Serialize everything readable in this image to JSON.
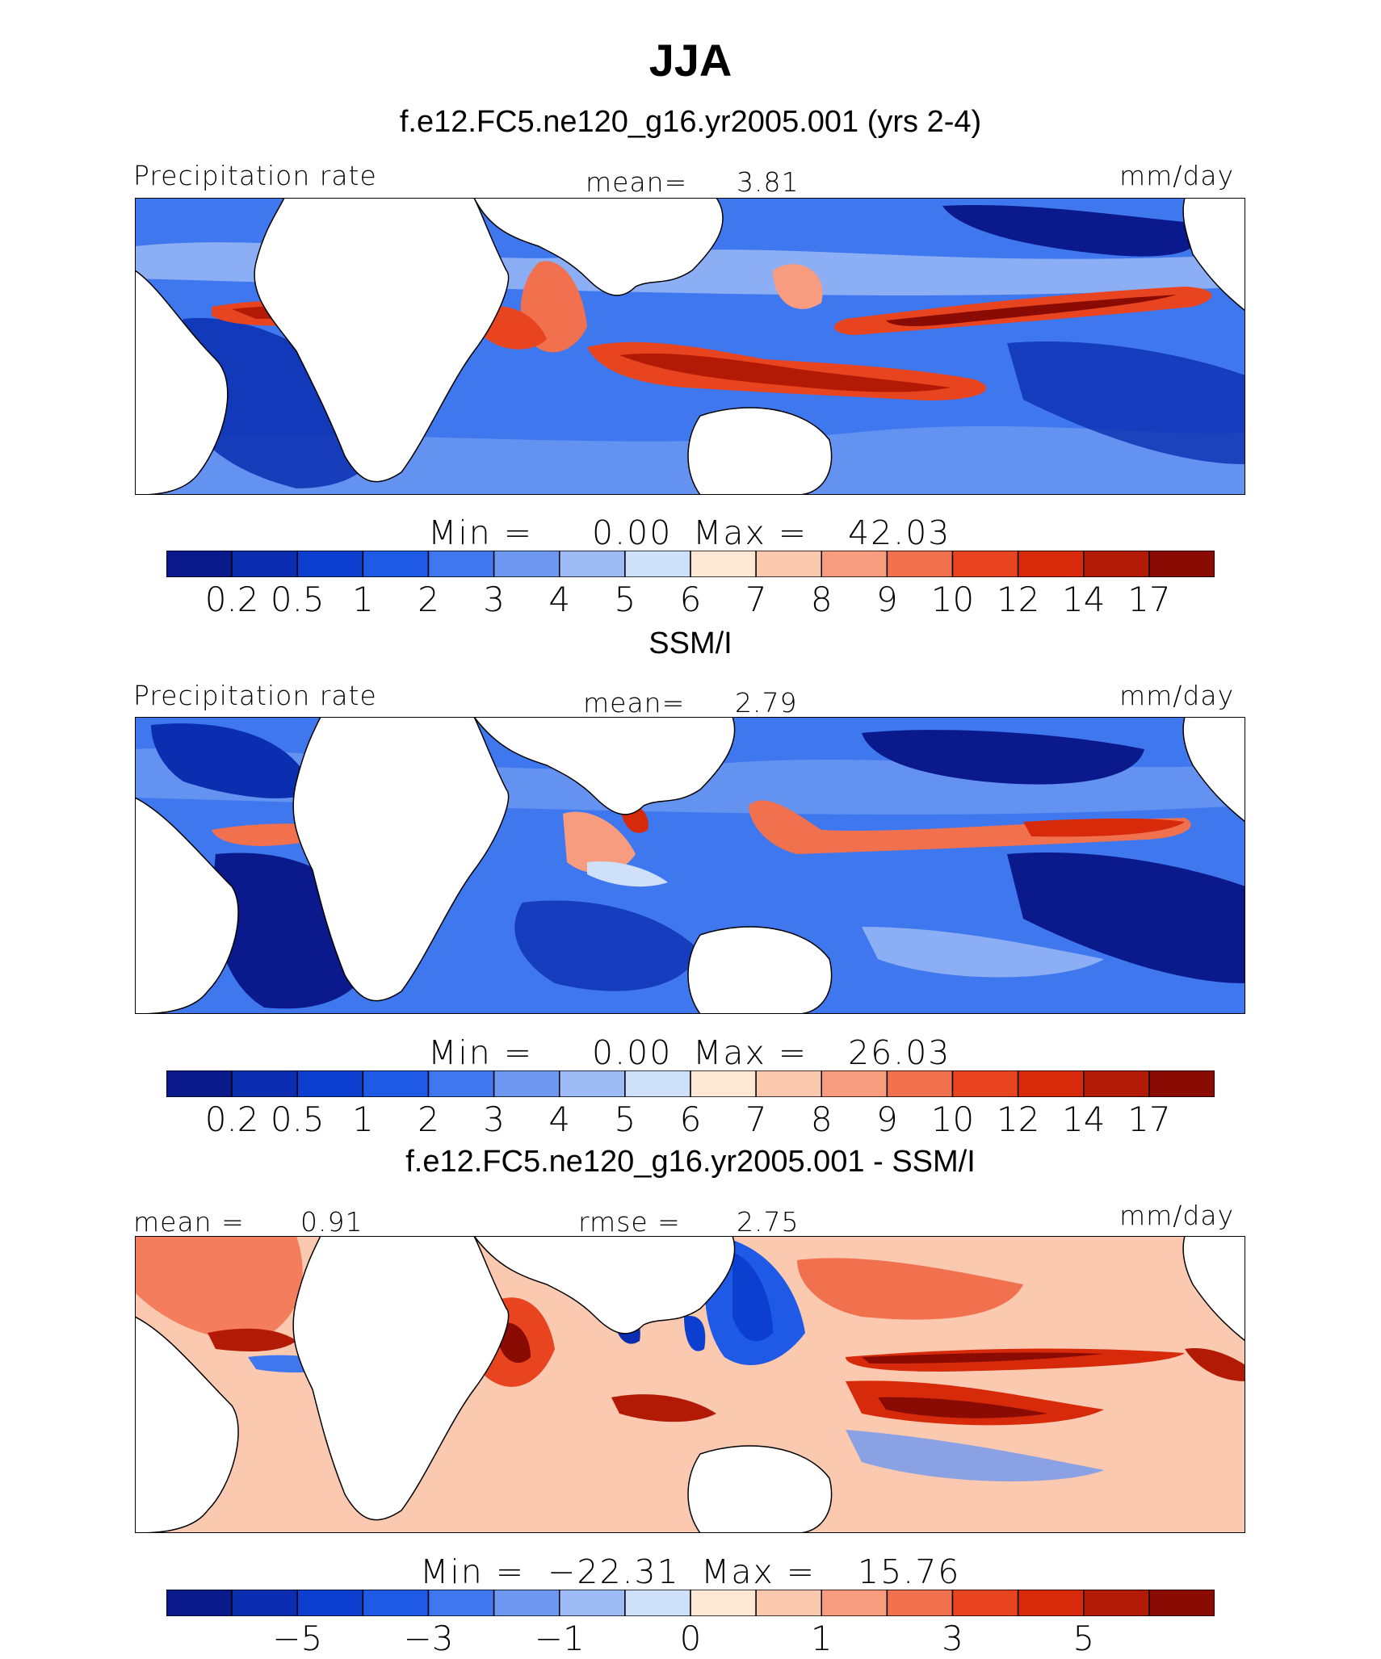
{
  "title": "JJA",
  "chart_data": [
    {
      "type": "heatmap",
      "title": "f.e12.FC5.ne120_g16.yr2005.001 (yrs 2-4)",
      "variable": "Precipitation rate",
      "units": "mm/day",
      "mean_label": "mean=",
      "mean": "3.81",
      "min_label": "Min  =",
      "min": "0.00",
      "max_label": "Max  =",
      "max": "42.03",
      "colorbar_levels": [
        "0.2",
        "0.5",
        "1",
        "2",
        "3",
        "4",
        "5",
        "6",
        "7",
        "8",
        "9",
        "10",
        "12",
        "14",
        "17"
      ]
    },
    {
      "type": "heatmap",
      "title": "SSM/I",
      "variable": "Precipitation rate",
      "units": "mm/day",
      "mean_label": "mean=",
      "mean": "2.79",
      "min_label": "Min  =",
      "min": "0.00",
      "max_label": "Max  =",
      "max": "26.03",
      "colorbar_levels": [
        "0.2",
        "0.5",
        "1",
        "2",
        "3",
        "4",
        "5",
        "6",
        "7",
        "8",
        "9",
        "10",
        "12",
        "14",
        "17"
      ]
    },
    {
      "type": "heatmap",
      "title": "f.e12.FC5.ne120_g16.yr2005.001 - SSM/I",
      "units": "mm/day",
      "mean_label": "mean =",
      "mean": "0.91",
      "rmse_label": "rmse =",
      "rmse": "2.75",
      "min_label": "Min  =",
      "min": "−22.31",
      "max_label": "Max  =",
      "max": "15.76",
      "colorbar_levels": [
        "−5",
        "−3",
        "−1",
        "0",
        "1",
        "3",
        "5"
      ]
    }
  ],
  "colors": {
    "palette": [
      "#0a1a8c",
      "#0b2eb0",
      "#0c3fd0",
      "#1f5ae6",
      "#3f78ee",
      "#6e98f0",
      "#9fbbf5",
      "#cfe0fa",
      "#fde8d6",
      "#fbc8b0",
      "#f79c7e",
      "#f1704e",
      "#e84420",
      "#d72a0a",
      "#b21a06",
      "#8a0b04"
    ]
  }
}
